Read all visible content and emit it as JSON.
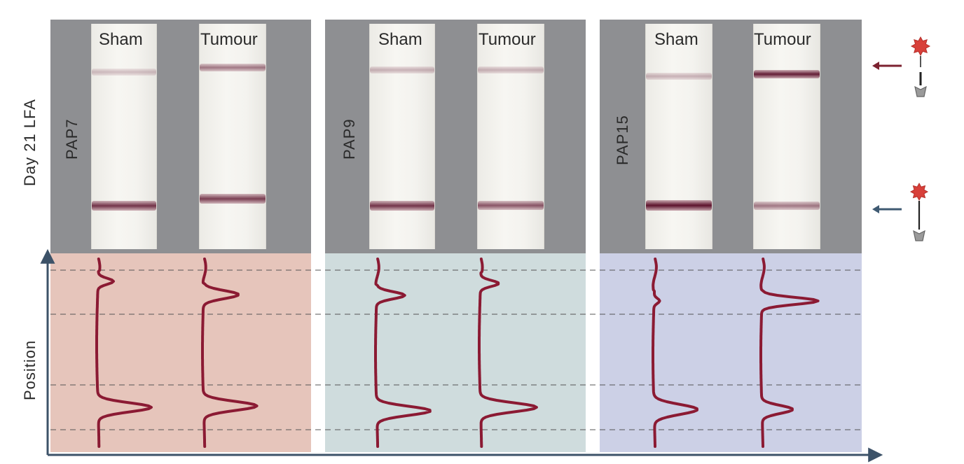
{
  "row_labels": {
    "top": "Day 21 LFA",
    "bottom": "Position"
  },
  "strip_labels": {
    "sham": "Sham",
    "tumour": "Tumour"
  },
  "panels": [
    {
      "probe": "PAP7",
      "bg_color": "#e6c5bb",
      "bands": {
        "sham_test": 0.25,
        "tumour_test": 0.55,
        "sham_control": 0.85,
        "tumour_control": 0.8
      }
    },
    {
      "probe": "PAP9",
      "bg_color": "#cfdcdd",
      "bands": {
        "sham_test": 0.3,
        "tumour_test": 0.3,
        "sham_control": 0.85,
        "tumour_control": 0.7
      }
    },
    {
      "probe": "PAP15",
      "bg_color": "#ccd0e6",
      "bands": {
        "sham_test": 0.3,
        "tumour_test": 0.95,
        "sham_control": 1.0,
        "tumour_control": 0.55
      }
    }
  ],
  "colors": {
    "band": "#7a1f3c",
    "trace": "#8b1a33",
    "axis": "#3c5268",
    "test_arrow": "#7c2230",
    "control_arrow": "#3f5a72",
    "star": "#d8403a",
    "anchor": "#9a9a9a"
  },
  "icons": {
    "test_line": "capture-probe-icon",
    "control_line": "capture-probe-icon"
  }
}
